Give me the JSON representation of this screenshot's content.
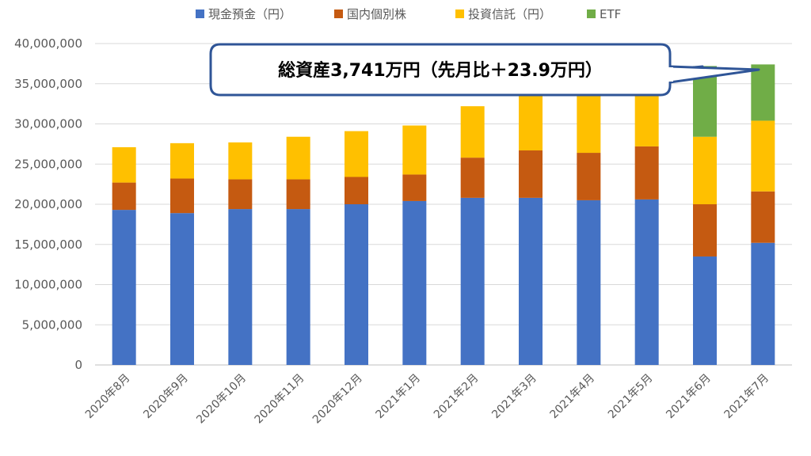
{
  "chart_data": {
    "type": "bar",
    "stacked": true,
    "categories": [
      "2020年8月",
      "2020年9月",
      "2020年10月",
      "2020年11月",
      "2020年12月",
      "2021年1月",
      "2021年2月",
      "2021年3月",
      "2021年4月",
      "2021年5月",
      "2021年6月",
      "2021年7月"
    ],
    "series": [
      {
        "name": "現金預金（円）",
        "color": "#4472C4",
        "values": [
          19300000,
          18900000,
          19400000,
          19400000,
          20000000,
          20400000,
          20800000,
          20800000,
          20500000,
          20600000,
          13500000,
          15200000
        ]
      },
      {
        "name": "国内個別株",
        "color": "#C55A11",
        "values": [
          3400000,
          4300000,
          3700000,
          3700000,
          3400000,
          3300000,
          5000000,
          5900000,
          5900000,
          6600000,
          6500000,
          6400000
        ]
      },
      {
        "name": "投資信託（円）",
        "color": "#FFC000",
        "values": [
          4400000,
          4400000,
          4600000,
          5300000,
          5700000,
          6100000,
          6400000,
          7000000,
          7500000,
          7300000,
          8400000,
          8800000
        ]
      },
      {
        "name": "ETF",
        "color": "#70AD47",
        "values": [
          0,
          0,
          0,
          0,
          0,
          0,
          0,
          0,
          0,
          0,
          8800000,
          7000000
        ]
      }
    ],
    "ylim": [
      0,
      40000000
    ],
    "yticks": [
      "0",
      "5,000,000",
      "10,000,000",
      "15,000,000",
      "20,000,000",
      "25,000,000",
      "30,000,000",
      "35,000,000",
      "40,000,000"
    ],
    "ytick_values": [
      0,
      5000000,
      10000000,
      15000000,
      20000000,
      25000000,
      30000000,
      35000000,
      40000000
    ],
    "grid": true,
    "legend_position": "top",
    "annotation": "総資産3,741万円（先月比＋23.9万円）"
  }
}
